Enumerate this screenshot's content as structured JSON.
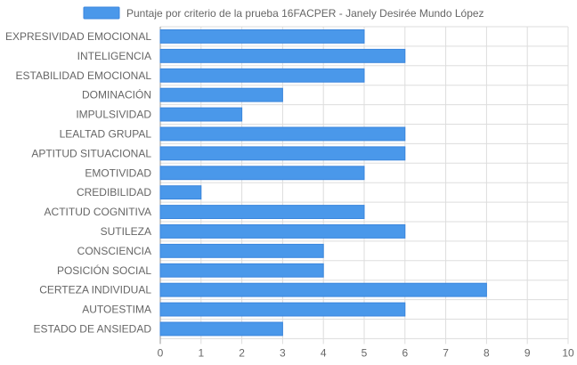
{
  "chart_data": {
    "type": "bar",
    "orientation": "horizontal",
    "legend": {
      "label": "Puntaje por criterio de la prueba 16FACPER - Janely Desirée Mundo López",
      "position": "top"
    },
    "categories": [
      "EXPRESIVIDAD EMOCIONAL",
      "INTELIGENCIA",
      "ESTABILIDAD EMOCIONAL",
      "DOMINACIÓN",
      "IMPULSIVIDAD",
      "LEALTAD GRUPAL",
      "APTITUD SITUACIONAL",
      "EMOTIVIDAD",
      "CREDIBILIDAD",
      "ACTITUD COGNITIVA",
      "SUTILEZA",
      "CONSCIENCIA",
      "POSICIÓN SOCIAL",
      "CERTEZA INDIVIDUAL",
      "AUTOESTIMA",
      "ESTADO DE ANSIEDAD"
    ],
    "values": [
      5,
      6,
      5,
      3,
      2,
      6,
      6,
      5,
      1,
      5,
      6,
      4,
      4,
      8,
      6,
      3
    ],
    "xlim": [
      0,
      10
    ],
    "xticks": [
      "0",
      "1",
      "2",
      "3",
      "4",
      "5",
      "6",
      "7",
      "8",
      "9",
      "10"
    ],
    "grid": true,
    "colors": {
      "bar_fill": "#4a98ea",
      "bar_stroke": "#3a86dd",
      "grid": "#dddddd",
      "label": "#666666"
    }
  }
}
